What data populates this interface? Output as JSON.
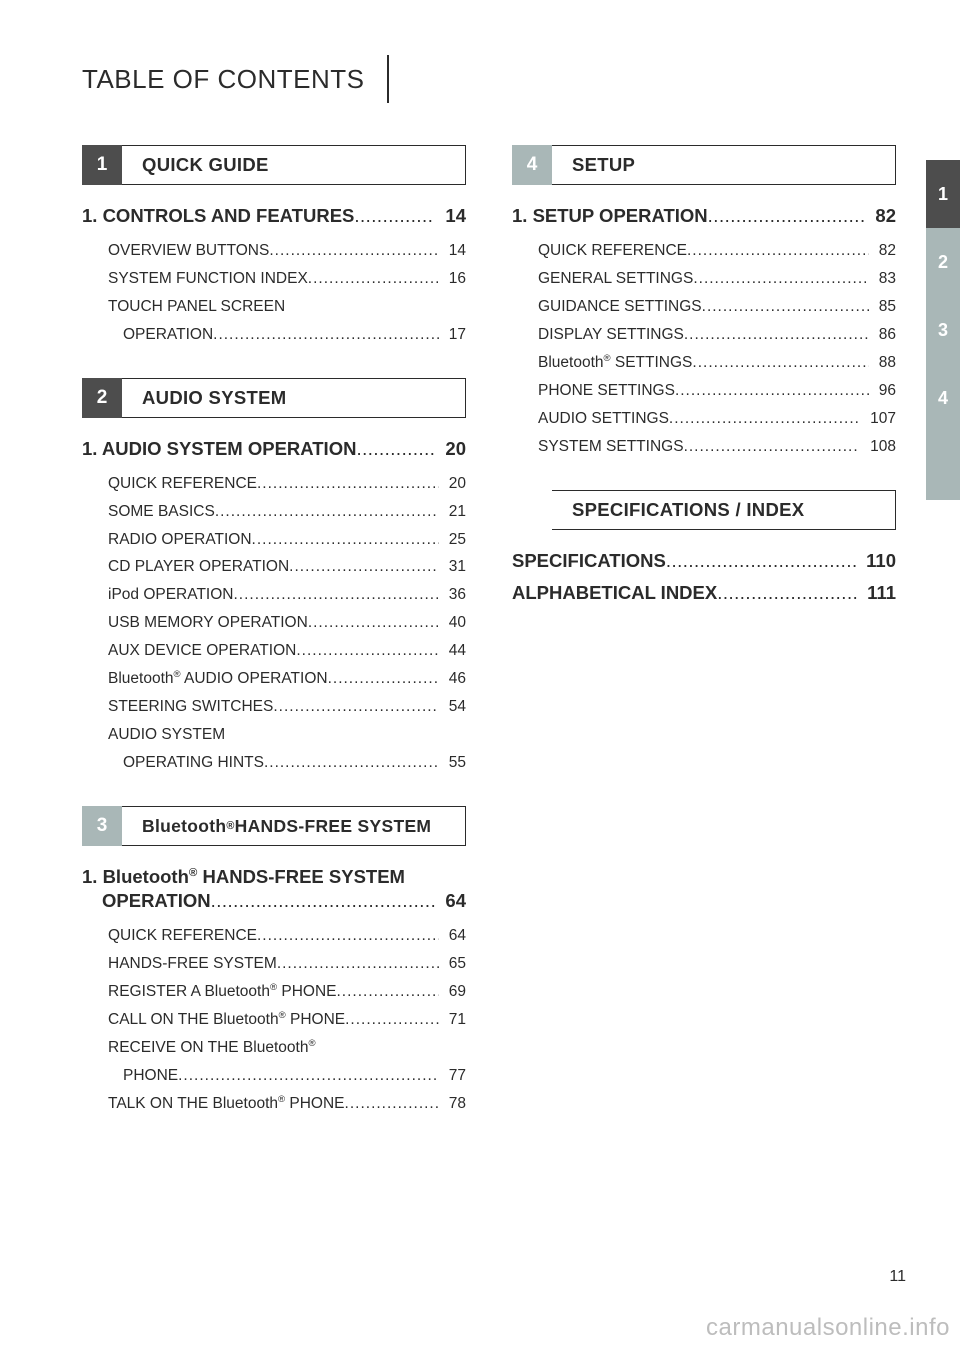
{
  "header": {
    "title": "TABLE OF CONTENTS"
  },
  "colors": {
    "text": "#2b2b2b",
    "tab_dark": "#4d4d4d",
    "tab_light": "#a9b7b7",
    "side_active": "#4d4d4d",
    "side_inactive": "#a9b7b7",
    "watermark": "#bdbdbd"
  },
  "leader": " .......................................................................",
  "sections": {
    "s1": {
      "num": "1",
      "tab_shade": "dark",
      "title": "QUICK GUIDE",
      "chapters": [
        {
          "pre": "1. ",
          "title": "CONTROLS AND FEATURES",
          "page": "14",
          "entries": [
            {
              "title": "OVERVIEW BUTTONS",
              "page": "14"
            },
            {
              "title": "SYSTEM FUNCTION INDEX",
              "page": "16"
            },
            {
              "title": "TOUCH PANEL SCREEN",
              "cont": "OPERATION",
              "page": "17"
            }
          ]
        }
      ]
    },
    "s2": {
      "num": "2",
      "tab_shade": "dark",
      "title": "AUDIO SYSTEM",
      "chapters": [
        {
          "pre": "1. ",
          "title": "AUDIO SYSTEM OPERATION",
          "page": "20",
          "entries": [
            {
              "title": "QUICK REFERENCE",
              "page": "20"
            },
            {
              "title": "SOME BASICS",
              "page": "21"
            },
            {
              "title": "RADIO OPERATION",
              "page": "25"
            },
            {
              "title": "CD PLAYER OPERATION",
              "page": "31"
            },
            {
              "title": "iPod OPERATION",
              "page": "36"
            },
            {
              "title": "USB MEMORY OPERATION",
              "page": "40"
            },
            {
              "title": "AUX DEVICE OPERATION",
              "page": "44"
            },
            {
              "title_html": "Bluetooth<sup class='reg'>®</sup> AUDIO OPERATION",
              "page": "46"
            },
            {
              "title": "STEERING SWITCHES",
              "page": "54"
            },
            {
              "title": "AUDIO SYSTEM",
              "cont": "OPERATING HINTS",
              "page": "55"
            }
          ]
        }
      ]
    },
    "s3": {
      "num": "3",
      "tab_shade": "light",
      "title_html": "Bluetooth<sup class='reg'>®</sup> HANDS-FREE SYSTEM",
      "chapters": [
        {
          "pre": "1. ",
          "title_html": "Bluetooth<sup class='reg'>®</sup> HANDS-FREE SYSTEM",
          "cont": "OPERATION",
          "page": "64",
          "entries": [
            {
              "title": "QUICK REFERENCE",
              "page": "64"
            },
            {
              "title": "HANDS-FREE SYSTEM",
              "page": "65"
            },
            {
              "title_html": "REGISTER A Bluetooth<sup class='reg'>®</sup> PHONE",
              "page": "69"
            },
            {
              "title_html": "CALL ON THE Bluetooth<sup class='reg'>®</sup> PHONE",
              "page": "71"
            },
            {
              "title_html": "RECEIVE ON THE Bluetooth<sup class='reg'>®</sup>",
              "cont": "PHONE",
              "page": "77"
            },
            {
              "title_html": "TALK ON THE Bluetooth<sup class='reg'>®</sup> PHONE",
              "page": "78"
            }
          ]
        }
      ]
    },
    "s4": {
      "num": "4",
      "tab_shade": "light",
      "title": "SETUP",
      "chapters": [
        {
          "pre": "1. ",
          "title": "SETUP OPERATION",
          "page": "82",
          "entries": [
            {
              "title": "QUICK REFERENCE",
              "page": "82"
            },
            {
              "title": "GENERAL SETTINGS",
              "page": "83"
            },
            {
              "title": "GUIDANCE SETTINGS",
              "page": "85"
            },
            {
              "title": "DISPLAY SETTINGS",
              "page": "86"
            },
            {
              "title_html": "Bluetooth<sup class='reg'>®</sup> SETTINGS",
              "page": "88"
            },
            {
              "title": "PHONE SETTINGS",
              "page": "96"
            },
            {
              "title": "AUDIO SETTINGS",
              "page": "107"
            },
            {
              "title": "SYSTEM SETTINGS",
              "page": "108"
            }
          ]
        }
      ]
    },
    "s5": {
      "num": "",
      "tab_shade": "none",
      "title": "SPECIFICATIONS / INDEX",
      "flat": [
        {
          "title": "SPECIFICATIONS",
          "page": "110"
        },
        {
          "title": "ALPHABETICAL INDEX",
          "page": "111"
        }
      ]
    }
  },
  "sidetabs": [
    {
      "label": "1",
      "shade": "active"
    },
    {
      "label": "2",
      "shade": "inactive"
    },
    {
      "label": "3",
      "shade": "inactive"
    },
    {
      "label": "4",
      "shade": "inactive"
    },
    {
      "label": "",
      "shade": "inactive"
    }
  ],
  "page_number": "11",
  "watermark": "carmanualsonline.info"
}
